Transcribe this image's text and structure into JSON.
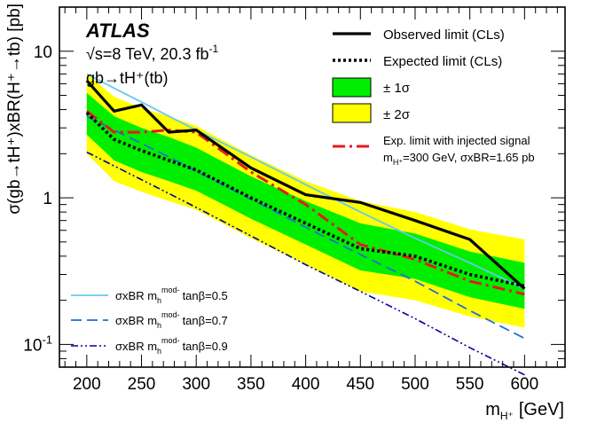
{
  "chart_data": {
    "type": "line",
    "xlabel": "m",
    "xlabel_sub": "H⁺",
    "xlabel_unit": "[GeV]",
    "ylabel": "σ(gb→tH⁺)xBR(H⁺→tb) [pb]",
    "xlim": [
      175,
      637
    ],
    "ylim": [
      0.07,
      20
    ],
    "yscale": "log",
    "xticks": [
      200,
      250,
      300,
      350,
      400,
      450,
      500,
      550,
      600
    ],
    "xtick_labels": [
      "200",
      "250",
      "300",
      "350",
      "400",
      "450",
      "500",
      "550",
      "600"
    ],
    "ytick_labels": [
      {
        "value": 0.1,
        "base": "10",
        "exp": "-1"
      },
      {
        "value": 1,
        "text": "1"
      },
      {
        "value": 10,
        "text": "10"
      }
    ],
    "annotations": {
      "experiment": "ATLAS",
      "energy": "√s=8 TeV, 20.3 fb",
      "energy_exp": "-1",
      "process": "gb→tH⁺(tb)"
    },
    "legend": {
      "placement": "top-right",
      "observed": "Observed limit (CLs)",
      "expected": "Expected limit (CLs)",
      "sigma1": "± 1σ",
      "sigma2": "± 2σ",
      "injected_line1": "Exp. limit with injected signal",
      "injected_line2": "=300 GeV, σxBR=1.65 pb"
    },
    "model_legend": {
      "placement": "bottom-left",
      "prefix": "σxBR m",
      "sup": "mod-",
      "tan05": "tanβ=0.5",
      "tan07": "tanβ=0.7",
      "tan09": "tanβ=0.9"
    },
    "x": [
      200,
      225,
      250,
      275,
      300,
      350,
      400,
      450,
      500,
      550,
      600
    ],
    "series": [
      {
        "key": "observed",
        "values": [
          6.3,
          3.9,
          4.3,
          2.8,
          2.9,
          1.6,
          1.05,
          0.93,
          0.7,
          0.52,
          0.24
        ]
      },
      {
        "key": "expected",
        "values": [
          3.8,
          2.5,
          2.1,
          1.8,
          1.55,
          1.0,
          0.67,
          0.45,
          0.4,
          0.3,
          0.25
        ]
      },
      {
        "key": "injected",
        "values": [
          3.9,
          2.8,
          2.8,
          2.9,
          2.8,
          1.5,
          0.9,
          0.48,
          0.38,
          0.27,
          0.22
        ]
      },
      {
        "key": "sigma1_low",
        "values": [
          2.7,
          1.8,
          1.5,
          1.3,
          1.12,
          0.72,
          0.48,
          0.32,
          0.28,
          0.21,
          0.175
        ]
      },
      {
        "key": "sigma1_high",
        "values": [
          5.2,
          3.6,
          3.0,
          2.6,
          2.2,
          1.4,
          0.95,
          0.67,
          0.57,
          0.43,
          0.36
        ]
      },
      {
        "key": "sigma2_low",
        "values": [
          2.0,
          1.3,
          1.1,
          0.95,
          0.83,
          0.53,
          0.35,
          0.23,
          0.2,
          0.155,
          0.13
        ]
      },
      {
        "key": "sigma2_high",
        "values": [
          7.0,
          4.9,
          4.1,
          3.6,
          3.1,
          1.95,
          1.3,
          0.95,
          0.8,
          0.61,
          0.52
        ]
      },
      {
        "key": "tan05",
        "values": [
          7.0,
          5.6,
          4.5,
          3.6,
          2.9,
          1.9,
          1.23,
          0.8,
          0.53,
          0.36,
          0.24
        ]
      },
      {
        "key": "tan07",
        "values": [
          3.6,
          2.9,
          2.35,
          1.9,
          1.52,
          0.98,
          0.63,
          0.41,
          0.27,
          0.17,
          0.11
        ]
      },
      {
        "key": "tan09",
        "values": [
          2.05,
          1.65,
          1.33,
          1.07,
          0.86,
          0.55,
          0.35,
          0.23,
          0.15,
          0.095,
          0.062
        ]
      }
    ],
    "colors": {
      "observed": "#000000",
      "expected": "#000000",
      "injected": "#e31a1c",
      "sigma1": "#00ee00",
      "sigma2": "#ffff00",
      "tan05": "#66c8f0",
      "tan07": "#1f6fd6",
      "tan09": "#0000a0"
    }
  }
}
